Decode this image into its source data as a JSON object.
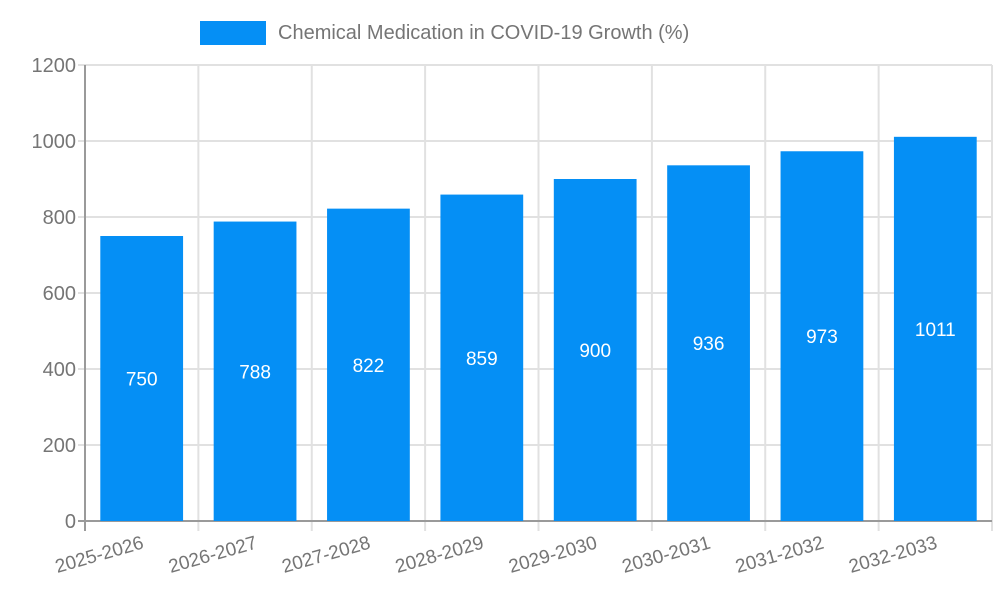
{
  "chart_data": {
    "type": "bar",
    "title": "Chemical Medication in COVID-19 Growth (%)",
    "legend": {
      "position": "top",
      "label": "Chemical Medication in COVID-19 Growth (%)"
    },
    "categories": [
      "2025-2026",
      "2026-2027",
      "2027-2028",
      "2028-2029",
      "2029-2030",
      "2030-2031",
      "2031-2032",
      "2032-2033"
    ],
    "values": [
      750,
      788,
      822,
      859,
      900,
      936,
      973,
      1011
    ],
    "xlabel": "",
    "ylabel": "",
    "ylim": [
      0,
      1200
    ],
    "yticks": [
      0,
      200,
      400,
      600,
      800,
      1000,
      1200
    ],
    "grid": true,
    "x_label_rotation_deg": -16,
    "value_labels_inside_bars": true,
    "colors": {
      "bar": "#058FF5",
      "value_label": "#FFFFFF",
      "axis_line": "#9A9A9A",
      "grid_line": "#E1E1E1",
      "tick_label": "#757575",
      "background": "#FFFFFF"
    }
  }
}
